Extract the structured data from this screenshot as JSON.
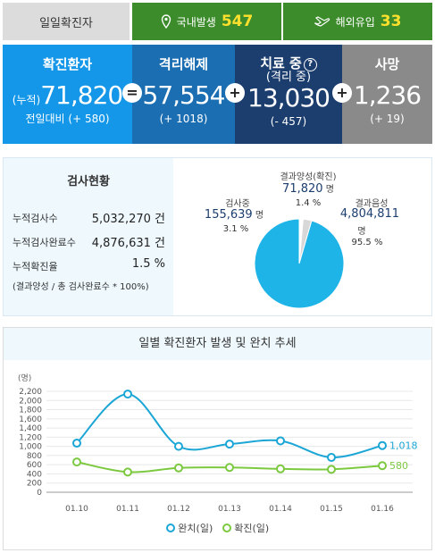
{
  "top": {
    "label": "일일확진자",
    "domestic_label": "국내발생",
    "domestic_value": "547",
    "overseas_label": "해외유입",
    "overseas_value": "33"
  },
  "stats": {
    "confirmed": {
      "title": "확진환자",
      "prefix": "(누적)",
      "value": "71,820",
      "sub": "전일대비 (+ 580)"
    },
    "released": {
      "title": "격리해제",
      "value": "57,554",
      "sub": "(+ 1018)"
    },
    "treatment": {
      "title": "치료 중",
      "title2": "(격리 중)",
      "help": "?",
      "value": "13,030",
      "sub": "(- 457)"
    },
    "deaths": {
      "title": "사망",
      "value": "1,236",
      "sub": "(+ 19)"
    },
    "ops": [
      "=",
      "+",
      "+"
    ]
  },
  "testing": {
    "title": "검사현황",
    "rows": [
      {
        "label": "누적검사수",
        "value": "5,032,270 건"
      },
      {
        "label": "누적검사완료수",
        "value": "4,876,631 건"
      },
      {
        "label": "누적확진율",
        "value": "1.5 %"
      }
    ],
    "note": "(결과양성 / 총 검사완료수 * 100%)",
    "pie": {
      "positive": {
        "label": "결과양성(확진)",
        "value": "71,820",
        "unit": "명",
        "pct": "1.4 %",
        "color": "#ffffff"
      },
      "pending": {
        "label": "검사중",
        "value": "155,639",
        "unit": "명",
        "pct": "3.1 %",
        "color": "#d8d8d8"
      },
      "negative": {
        "label": "결과음성",
        "value": "4,804,811",
        "unit": "명",
        "pct": "95.5 %",
        "color": "#1eb4e8"
      }
    }
  },
  "trend": {
    "title": "일별 확진환자 발생 및 완치 추세",
    "legend_released": "완치(일)",
    "legend_confirmed": "확진(일)"
  },
  "chart_data": {
    "type": "line",
    "x": [
      "01.10",
      "01.11",
      "01.12",
      "01.13",
      "01.14",
      "01.15",
      "01.16"
    ],
    "series": [
      {
        "name": "완치(일)",
        "values": [
          1070,
          2140,
          1000,
          1050,
          1120,
          760,
          1018
        ],
        "color": "#1ba6d6",
        "last_label": "1,018"
      },
      {
        "name": "확진(일)",
        "values": [
          660,
          440,
          530,
          540,
          510,
          500,
          580
        ],
        "color": "#7cc940",
        "last_label": "580"
      }
    ],
    "ylabel": "(명)",
    "ylim": [
      0,
      2200
    ],
    "yticks": [
      0,
      200,
      400,
      600,
      800,
      1000,
      1200,
      1400,
      1600,
      1800,
      2000,
      2200
    ],
    "ytick_labels": [
      "0",
      "200",
      "400",
      "600",
      "800",
      "1,000",
      "1,200",
      "1,400",
      "1,600",
      "1,800",
      "2,000",
      "2,200"
    ],
    "grid": true
  }
}
